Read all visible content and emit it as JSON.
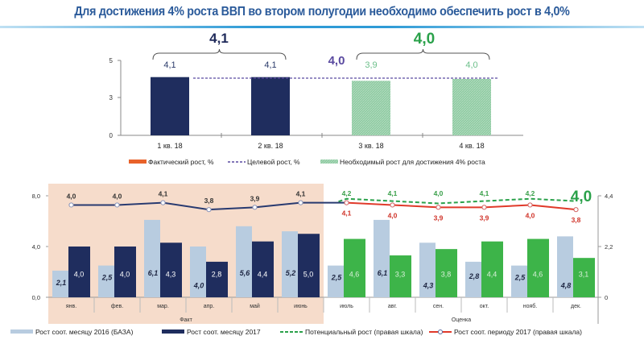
{
  "title": "Для достижения 4% роста ВВП во втором полугодии необходимо обеспечить рост в 4,0%",
  "chart_data": [
    {
      "type": "bar",
      "categories": [
        "1 кв. 18",
        "2 кв. 18",
        "3 кв. 18",
        "4 кв. 18"
      ],
      "values": [
        4.1,
        4.1,
        3.9,
        4.0
      ],
      "value_labels": [
        "4,1",
        "4,1",
        "3,9",
        "4,0"
      ],
      "bar_kinds": [
        "actual",
        "actual",
        "required",
        "required"
      ],
      "yticks": [
        "0",
        "3",
        "5"
      ],
      "target": 4.0,
      "target_label": "4,0",
      "half_labels": [
        {
          "text": "4,1",
          "color": "#1f2a5a"
        },
        {
          "text": "4,0",
          "color": "#2aa14a"
        }
      ],
      "legend": [
        {
          "name": "Фактический рост, %",
          "color": "#e8622a",
          "style": "bar"
        },
        {
          "name": "Целевой рост, %",
          "color": "#5a4aa0",
          "style": "dashed"
        },
        {
          "name": "Необходимый рост для достижения 4% роста",
          "color": "#8ccaa0",
          "style": "hatched"
        }
      ],
      "colors": {
        "actual": "#1f2d5e",
        "required": "#8ccaa0",
        "target": "#5a4aa0"
      }
    },
    {
      "type": "bar+line",
      "categories": [
        "янв.",
        "фев.",
        "мар.",
        "апр.",
        "май",
        "июнь",
        "июль",
        "авг.",
        "сен.",
        "окт.",
        "нояб.",
        "дек."
      ],
      "groups": [
        "Факт",
        "Оценка"
      ],
      "left_axis": {
        "ylim": [
          0,
          8
        ],
        "ticks": [
          "0,0",
          "4,0",
          "8,0"
        ]
      },
      "right_axis": {
        "ylim": [
          0,
          4.4
        ],
        "ticks": [
          "0",
          "2,2",
          "4,4"
        ]
      },
      "series": [
        {
          "name": "Рост соот. месяцу 2016 (БАЗА)",
          "axis": "left",
          "color": "#b8cce0",
          "values": [
            2.1,
            2.5,
            6.1,
            4.0,
            5.6,
            5.2,
            2.5,
            6.1,
            4.3,
            2.8,
            2.5,
            4.8
          ],
          "labels": [
            "2,1",
            "2,5",
            "6,1",
            "4,0",
            "5,6",
            "5,2",
            "2,5",
            "6,1",
            "4,3",
            "2,8",
            "2,5",
            "4,8"
          ]
        },
        {
          "name": "Рост соот. месяцу 2017",
          "axis": "left",
          "color": "#1f2d5e",
          "forecast_color": "#3db449",
          "values": [
            4.0,
            4.0,
            4.3,
            2.8,
            4.4,
            5.0,
            4.6,
            3.3,
            3.8,
            4.4,
            4.6,
            3.1
          ],
          "labels": [
            "4,0",
            "4,0",
            "4,3",
            "2,8",
            "4,4",
            "5,0",
            "4,6",
            "3,3",
            "3,8",
            "4,4",
            "4,6",
            "3,1"
          ]
        },
        {
          "name": "Потенциальный рост  (правая шкала)",
          "axis": "right",
          "color": "#2aa14a",
          "values": [
            null,
            null,
            null,
            null,
            null,
            null,
            4.2,
            4.1,
            4.0,
            4.1,
            4.2,
            null
          ],
          "labels": [
            "",
            "",
            "",
            "",
            "",
            "",
            "4,2",
            "4,1",
            "4,0",
            "4,1",
            "4,2",
            ""
          ]
        },
        {
          "name": "Рост соот. периоду 2017 (правая шкала)",
          "axis": "right",
          "color": "#e03a2a",
          "fact_color": "#283a70",
          "values": [
            4.0,
            4.0,
            4.1,
            3.8,
            3.9,
            4.1,
            4.1,
            4.0,
            3.9,
            3.9,
            4.0,
            3.8
          ],
          "labels": [
            "4,0",
            "4,0",
            "4,1",
            "3,8",
            "3,9",
            "4,1",
            "4,1",
            "4,0",
            "3,9",
            "3,9",
            "4,0",
            "3,8"
          ]
        }
      ],
      "annotation": "4,0",
      "colors": {
        "fact_band": "#f6dccb",
        "annotation": "#2aa14a"
      }
    }
  ]
}
